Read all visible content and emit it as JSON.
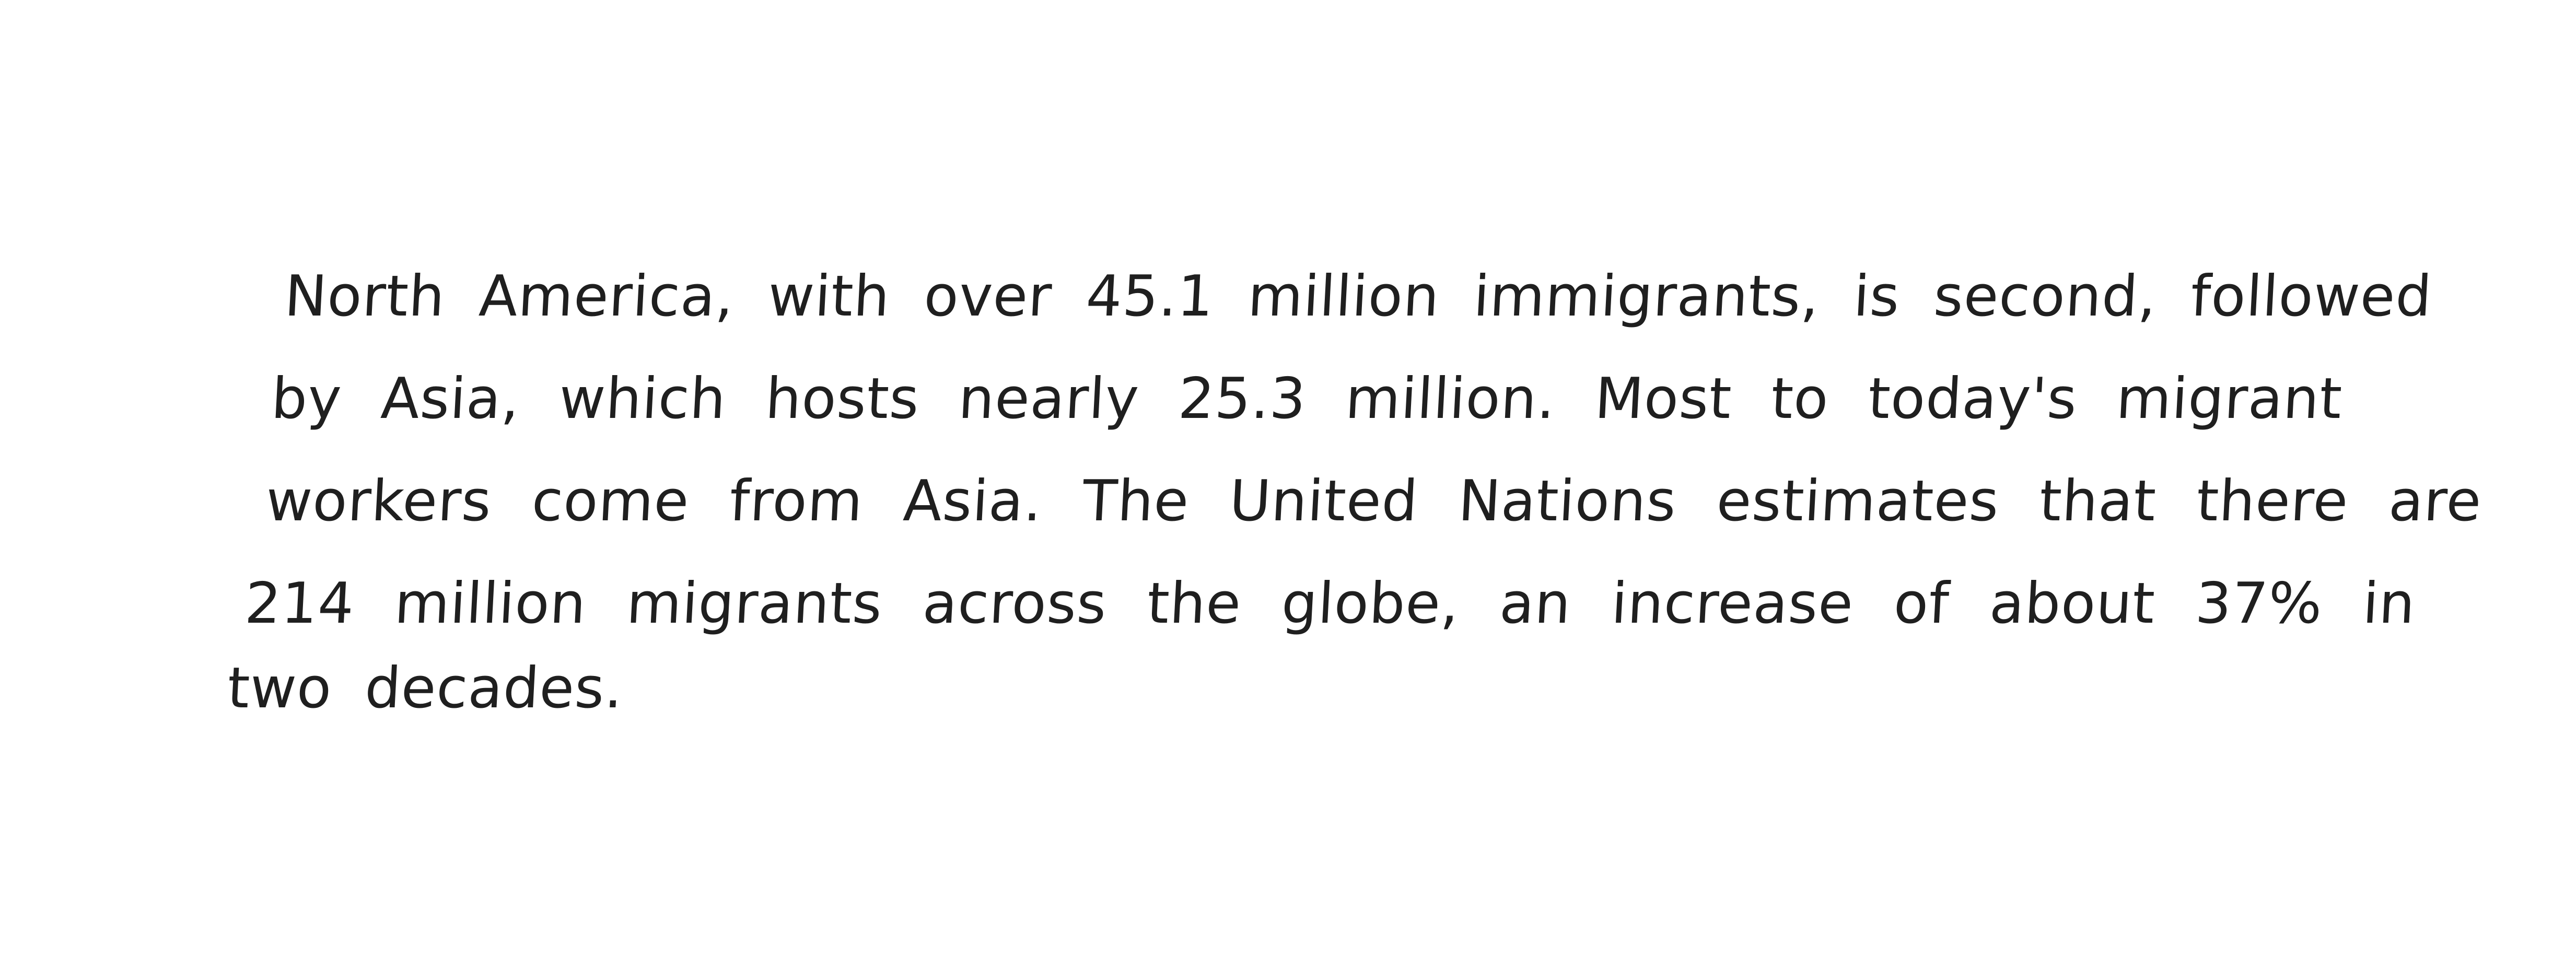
{
  "document": {
    "lines": [
      "North America, with over 45.1 million immigrants, is second, followed",
      "by Asia, which hosts nearly 25.3 million. Most to today's migrant",
      "workers come from Asia. The United Nations estimates that there are",
      "214 million migrants across the globe, an increase of about 37% in",
      "two decades."
    ]
  }
}
